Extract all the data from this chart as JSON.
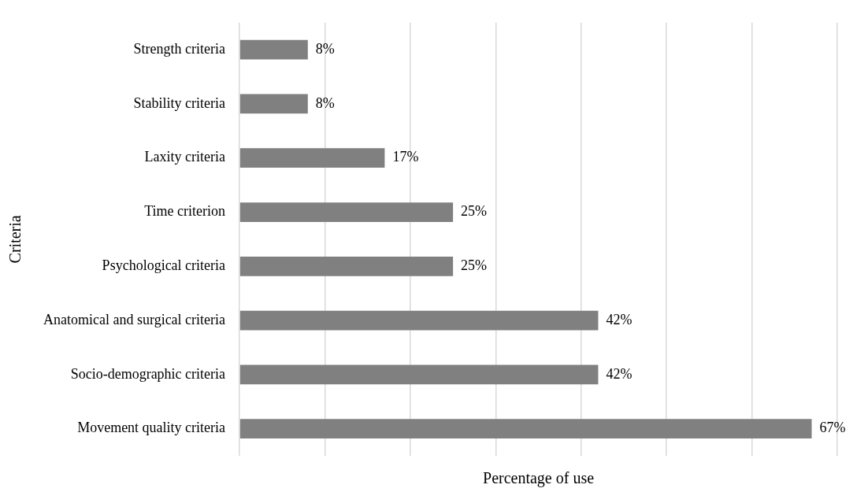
{
  "chart_data": {
    "type": "bar",
    "orientation": "horizontal",
    "xlabel": "Percentage of use",
    "ylabel": "Criteria",
    "categories": [
      "Strength criteria",
      "Stability criteria",
      "Laxity criteria",
      "Time criterion",
      "Psychological criteria",
      "Anatomical and surgical criteria",
      "Socio-demographic criteria",
      "Movement quality criteria"
    ],
    "values": [
      8,
      8,
      17,
      25,
      25,
      42,
      42,
      67
    ],
    "value_labels": [
      "8%",
      "8%",
      "17%",
      "25%",
      "25%",
      "42%",
      "42%",
      "67%"
    ],
    "color": "#808080",
    "xlim": [
      0,
      70
    ],
    "xticks": [
      {
        "value": 0,
        "label": null
      },
      {
        "value": 10,
        "label": null
      },
      {
        "value": 20,
        "label": null
      },
      {
        "value": 30,
        "label": null
      },
      {
        "value": 40,
        "label": null
      },
      {
        "value": 50,
        "label": null
      },
      {
        "value": 60,
        "label": null
      },
      {
        "value": 70,
        "label": null
      }
    ],
    "grid": "x",
    "tick_labels": "y"
  }
}
